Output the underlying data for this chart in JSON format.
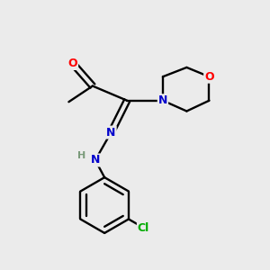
{
  "background_color": "#ebebeb",
  "bond_color": "#000000",
  "atom_colors": {
    "O": "#ff0000",
    "N": "#0000cc",
    "Cl": "#00aa00",
    "H": "#7a9a7a",
    "C": "#000000"
  },
  "figsize": [
    3.0,
    3.0
  ],
  "dpi": 100
}
